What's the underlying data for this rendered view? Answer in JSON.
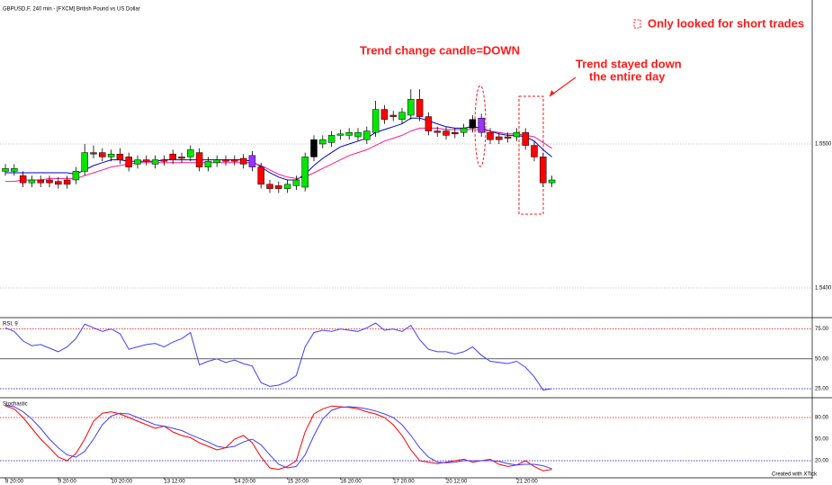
{
  "header": {
    "symbol": "GBPUSD,F, 240 min - [FXCM] British Pound vs US Dollar",
    "watermark": "Created with XTick"
  },
  "annotations": [
    "Trend change candle=DOWN",
    "Trend stayed down",
    "the entire day",
    "Only looked for short trades"
  ],
  "chart_data": [
    {
      "type": "candlestick",
      "categories": [
        "8 20:00",
        null,
        null,
        null,
        null,
        null,
        "9 20:00",
        null,
        null,
        null,
        null,
        null,
        "10 20:00",
        null,
        null,
        null,
        null,
        null,
        "13 12:00",
        null,
        null,
        null,
        null,
        null,
        null,
        null,
        "14 20:00",
        null,
        null,
        null,
        null,
        null,
        "15 20:00",
        null,
        null,
        null,
        null,
        null,
        "16 20:00",
        null,
        null,
        null,
        null,
        null,
        "17 20:00",
        null,
        null,
        null,
        null,
        null,
        "20 12:00",
        null,
        null,
        null,
        null,
        null,
        null,
        null,
        "21 20:00",
        null,
        null,
        null,
        null
      ],
      "open": [
        1.5481,
        1.5481,
        1.5478,
        1.5473,
        1.5475,
        1.5475,
        1.5474,
        1.5475,
        1.5475,
        1.5481,
        1.5494,
        1.5494,
        1.5491,
        1.5493,
        1.5491,
        1.5486,
        1.5489,
        1.5486,
        1.5489,
        1.5493,
        1.5491,
        1.5491,
        1.5494,
        1.5484,
        1.5487,
        1.5489,
        1.5489,
        1.549,
        1.5492,
        1.5484,
        1.5472,
        1.5471,
        1.5469,
        1.5471,
        1.547,
        1.5491,
        1.55,
        1.5501,
        1.5506,
        1.5506,
        1.5505,
        1.5503,
        1.5508,
        1.5524,
        1.552,
        1.5517,
        1.552,
        1.5531,
        1.5519,
        1.5509,
        1.5509,
        1.5508,
        1.5508,
        1.5511,
        1.5518,
        1.5508,
        1.5505,
        1.5505,
        1.5505,
        1.5508,
        1.5499,
        1.5491,
        1.5473
      ],
      "high": [
        1.5486,
        1.5486,
        1.5481,
        1.5478,
        1.5478,
        1.5478,
        1.5477,
        1.5478,
        1.5484,
        1.55,
        1.5499,
        1.5497,
        1.5496,
        1.5497,
        1.5494,
        1.5492,
        1.5492,
        1.5492,
        1.5492,
        1.5496,
        1.5494,
        1.5499,
        1.5497,
        1.5491,
        1.5492,
        1.5492,
        1.5492,
        1.5493,
        1.5495,
        1.5487,
        1.5475,
        1.5474,
        1.5475,
        1.5478,
        1.5494,
        1.5506,
        1.5506,
        1.5509,
        1.551,
        1.5511,
        1.5511,
        1.5512,
        1.553,
        1.5527,
        1.5523,
        1.5525,
        1.5538,
        1.5538,
        1.5522,
        1.5512,
        1.5512,
        1.5511,
        1.5514,
        1.552,
        1.5521,
        1.5511,
        1.5508,
        1.5508,
        1.5511,
        1.5511,
        1.5502,
        1.5494,
        1.5478
      ],
      "low": [
        1.5478,
        1.5478,
        1.547,
        1.547,
        1.547,
        1.547,
        1.5469,
        1.5469,
        1.5472,
        1.5478,
        1.549,
        1.5488,
        1.5488,
        1.5486,
        1.5481,
        1.5483,
        1.5485,
        1.5483,
        1.5485,
        1.5486,
        1.5487,
        1.5488,
        1.5481,
        1.5481,
        1.5484,
        1.5485,
        1.5485,
        1.5483,
        1.5481,
        1.5469,
        1.5466,
        1.5466,
        1.5466,
        1.5468,
        1.5467,
        1.5488,
        1.5497,
        1.5498,
        1.5503,
        1.5503,
        1.5502,
        1.55,
        1.5505,
        1.5514,
        1.5516,
        1.5514,
        1.5517,
        1.5516,
        1.5506,
        1.5505,
        1.5503,
        1.5504,
        1.5505,
        1.5508,
        1.5505,
        1.55,
        1.55,
        1.5501,
        1.5502,
        1.5496,
        1.5488,
        1.547,
        1.547
      ],
      "close": [
        1.5483,
        1.5483,
        1.5473,
        1.5475,
        1.5473,
        1.5473,
        1.5472,
        1.5472,
        1.5481,
        1.5494,
        1.5493,
        1.5491,
        1.5493,
        1.5489,
        1.5484,
        1.5489,
        1.5488,
        1.5489,
        1.5488,
        1.5489,
        1.549,
        1.5496,
        1.5484,
        1.5488,
        1.5489,
        1.5488,
        1.5488,
        1.5486,
        1.5484,
        1.5472,
        1.5469,
        1.5469,
        1.5472,
        1.5475,
        1.5491,
        1.5503,
        1.5503,
        1.5506,
        1.5507,
        1.5508,
        1.5508,
        1.5509,
        1.5524,
        1.5517,
        1.5519,
        1.5522,
        1.5531,
        1.5519,
        1.5509,
        1.5508,
        1.5506,
        1.5507,
        1.5511,
        1.5517,
        1.5508,
        1.5503,
        1.5503,
        1.5504,
        1.5508,
        1.5499,
        1.5491,
        1.5473,
        1.5475
      ],
      "up_color": "#00e600",
      "down_color": "#ff0000",
      "highlight": [
        {
          "index": 28,
          "color": "#9933ff"
        },
        {
          "index": 35,
          "color": "#000000"
        },
        {
          "index": 53,
          "color": "#000000"
        },
        {
          "index": 54,
          "color": "#9933ff"
        }
      ],
      "lines": [
        {
          "color": "#0000cc",
          "values": [
            1.548,
            1.548,
            1.548,
            1.548,
            1.548,
            1.548,
            1.548,
            1.548,
            1.5479,
            1.5482,
            1.5485,
            1.5487,
            1.5489,
            1.5489,
            1.5488,
            1.5488,
            1.5488,
            1.5488,
            1.5489,
            1.5489,
            1.5489,
            1.5489,
            1.5489,
            1.5489,
            1.5489,
            1.5489,
            1.5489,
            1.5489,
            1.5488,
            1.5484,
            1.548,
            1.5477,
            1.5475,
            1.5475,
            1.5479,
            1.5485,
            1.549,
            1.5494,
            1.5498,
            1.55,
            1.5502,
            1.5504,
            1.5508,
            1.551,
            1.5512,
            1.5514,
            1.5518,
            1.5518,
            1.5516,
            1.5514,
            1.5512,
            1.5511,
            1.5511,
            1.5512,
            1.5511,
            1.5509,
            1.5507,
            1.5506,
            1.5506,
            1.5505,
            1.5502,
            1.5496,
            1.5491
          ]
        },
        {
          "color": "#ff1a8c",
          "values": [
            1.5474,
            1.5474,
            1.5475,
            1.5475,
            1.5475,
            1.5476,
            1.5476,
            1.5476,
            1.5476,
            1.5478,
            1.548,
            1.5482,
            1.5484,
            1.5485,
            1.5486,
            1.5487,
            1.5487,
            1.5487,
            1.5487,
            1.5487,
            1.5487,
            1.5487,
            1.5487,
            1.5487,
            1.5487,
            1.5487,
            1.5487,
            1.5487,
            1.5487,
            1.5485,
            1.5482,
            1.5479,
            1.5477,
            1.5476,
            1.5477,
            1.548,
            1.5483,
            1.5486,
            1.5489,
            1.5492,
            1.5494,
            1.5496,
            1.5499,
            1.5502,
            1.5504,
            1.5506,
            1.5509,
            1.5511,
            1.5511,
            1.5511,
            1.551,
            1.551,
            1.551,
            1.551,
            1.551,
            1.5509,
            1.5508,
            1.5507,
            1.5507,
            1.5506,
            1.5505,
            1.5501,
            1.5497
          ]
        }
      ],
      "ylim": [
        1.538,
        1.56
      ],
      "yticks": [
        {
          "value": 1.55,
          "label": "1.5500"
        },
        {
          "value": 1.54,
          "label": "1.5400"
        }
      ]
    },
    {
      "type": "line",
      "title": "RSI, 9",
      "series": [
        {
          "color": "#4040ff",
          "values": [
            76,
            73,
            65,
            61,
            62,
            59,
            56,
            60,
            67,
            79,
            76,
            73,
            75,
            71,
            58,
            60,
            62,
            63,
            60,
            64,
            67,
            72,
            45,
            48,
            50,
            47,
            49,
            46,
            44,
            30,
            27,
            28,
            31,
            36,
            60,
            72,
            74,
            73,
            75,
            74,
            73,
            76,
            80,
            74,
            75,
            73,
            78,
            66,
            58,
            56,
            56,
            54,
            56,
            60,
            53,
            48,
            47,
            46,
            48,
            43,
            35,
            24,
            25
          ]
        }
      ],
      "ylim": [
        19,
        83
      ],
      "yticks": [
        {
          "value": 75,
          "label": "75.00"
        },
        {
          "value": 50,
          "label": "50.00"
        },
        {
          "value": 25,
          "label": "25.00"
        }
      ],
      "tick_colors": [
        "#ff0000",
        "#000000",
        "#0000ff"
      ]
    },
    {
      "type": "line",
      "title": "Stochastic",
      "series": [
        {
          "color": "#ff0000",
          "values": [
            96,
            92,
            80,
            65,
            50,
            38,
            25,
            20,
            30,
            50,
            75,
            86,
            88,
            85,
            80,
            75,
            70,
            65,
            68,
            60,
            55,
            52,
            45,
            40,
            35,
            38,
            50,
            55,
            45,
            25,
            10,
            8,
            12,
            20,
            60,
            85,
            92,
            96,
            95,
            94,
            92,
            88,
            85,
            80,
            70,
            55,
            35,
            20,
            18,
            16,
            18,
            20,
            22,
            18,
            20,
            22,
            15,
            12,
            14,
            20,
            12,
            6,
            8
          ]
        },
        {
          "color": "#4040ff",
          "values": [
            97,
            95,
            88,
            78,
            65,
            50,
            38,
            28,
            25,
            33,
            50,
            70,
            82,
            86,
            85,
            80,
            75,
            70,
            68,
            65,
            62,
            56,
            51,
            46,
            40,
            38,
            40,
            46,
            50,
            42,
            28,
            15,
            10,
            12,
            28,
            55,
            78,
            90,
            94,
            95,
            94,
            92,
            89,
            85,
            80,
            70,
            55,
            38,
            25,
            18,
            17,
            18,
            20,
            20,
            20,
            20,
            19,
            16,
            14,
            15,
            15,
            13,
            9
          ]
        }
      ],
      "ylim": [
        -2.5,
        105
      ],
      "yticks": [
        {
          "value": 80,
          "label": "80.00"
        },
        {
          "value": 50,
          "label": "50.00"
        },
        {
          "value": 20,
          "label": "20.00"
        }
      ],
      "tick_colors": [
        "#ff0000",
        "#ffffff",
        "#0000ff"
      ]
    }
  ]
}
